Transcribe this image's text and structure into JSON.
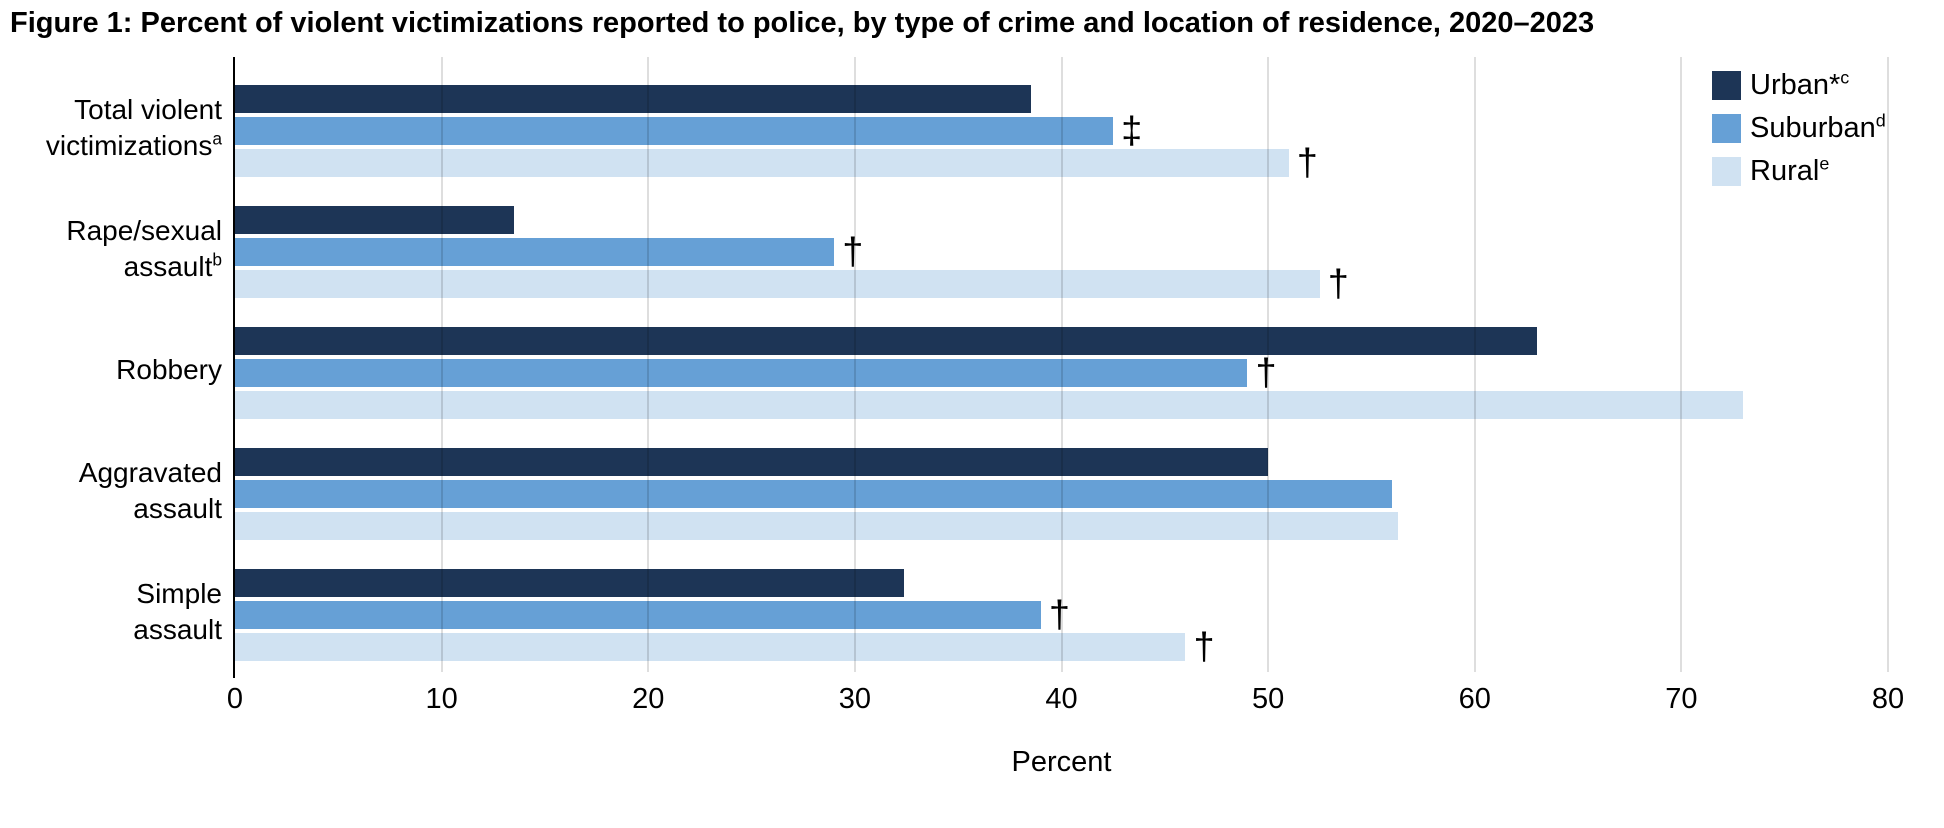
{
  "chart_data": {
    "type": "bar",
    "orientation": "horizontal",
    "title": "Figure 1: Percent of violent victimizations reported to police, by type of crime and location of residence, 2020–2023",
    "xlabel": "Percent",
    "xlim": [
      0,
      80
    ],
    "xticks": [
      0,
      10,
      20,
      30,
      40,
      50,
      60,
      70,
      80
    ],
    "grid": "vertical gridlines every 10, light gray, drawn over bars",
    "legend_position": "top-right",
    "categories": [
      {
        "line1": "Total violent",
        "line2": "victimizations",
        "footnote": "a"
      },
      {
        "line1": "Rape/sexual",
        "line2": "assault",
        "footnote": "b"
      },
      {
        "line1": "Robbery",
        "line2": "",
        "footnote": ""
      },
      {
        "line1": "Aggravated",
        "line2": "assault",
        "footnote": ""
      },
      {
        "line1": "Simple",
        "line2": "assault",
        "footnote": ""
      }
    ],
    "series": [
      {
        "name": "Urban*",
        "footnote": "c",
        "color": "#1D3556",
        "values": [
          38.5,
          13.5,
          63,
          50,
          32.4
        ],
        "markers": [
          "",
          "",
          "",
          "",
          ""
        ]
      },
      {
        "name": "Suburban",
        "footnote": "d",
        "color": "#66A0D6",
        "values": [
          42.5,
          29,
          49,
          56,
          39
        ],
        "markers": [
          "‡",
          "†",
          "†",
          "",
          "†"
        ]
      },
      {
        "name": "Rural",
        "footnote": "e",
        "color": "#D0E2F2",
        "values": [
          51,
          52.5,
          73,
          56.3,
          46
        ],
        "markers": [
          "†",
          "†",
          "",
          "",
          "†"
        ]
      }
    ],
    "colors": {
      "axis": "#000000",
      "gridline": "rgba(0,0,0,0.13)",
      "background": "#ffffff",
      "text": "#000000"
    }
  }
}
